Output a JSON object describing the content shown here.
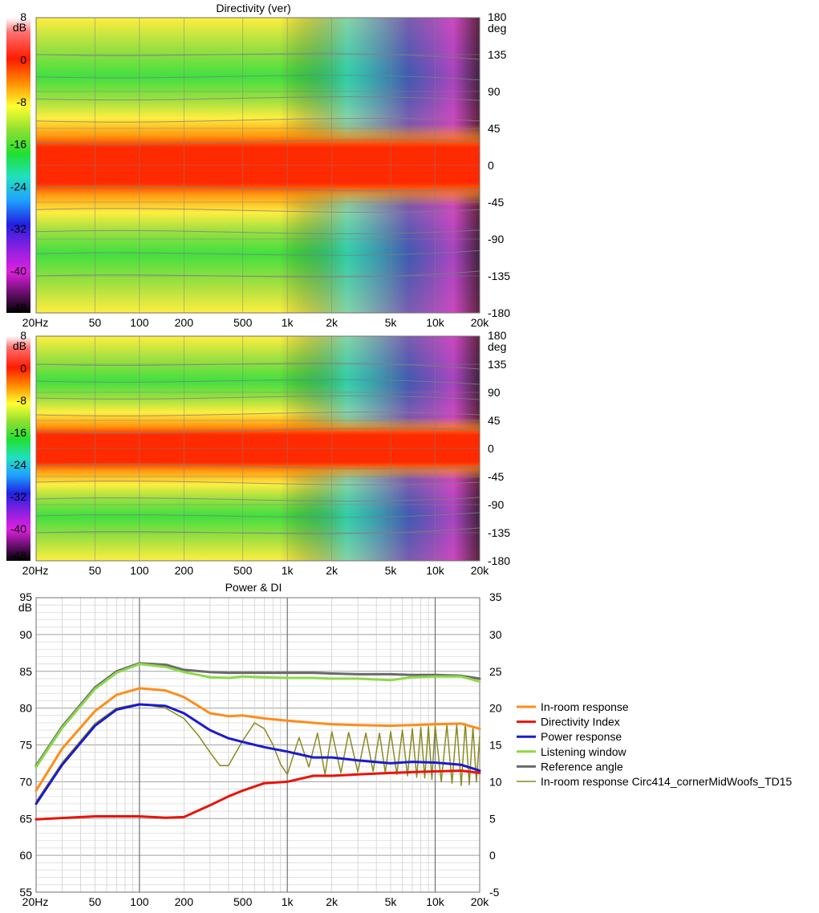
{
  "chart_data": [
    {
      "type": "heatmap",
      "title": "Directivity (ver)",
      "x_scale": "log",
      "xlim": [
        20,
        20000
      ],
      "x_ticks": [
        "20Hz",
        "50",
        "100",
        "200",
        "500",
        "1k",
        "2k",
        "5k",
        "10k",
        "20k"
      ],
      "x_tick_values": [
        20,
        50,
        100,
        200,
        500,
        1000,
        2000,
        5000,
        10000,
        20000
      ],
      "ylim": [
        -180,
        180
      ],
      "y_unit": "deg",
      "y_ticks": [
        "180",
        "135",
        "90",
        "45",
        "0",
        "-45",
        "-90",
        "-135",
        "-180"
      ],
      "y_tick_values": [
        180,
        135,
        90,
        45,
        0,
        -45,
        -90,
        -135,
        -180
      ],
      "colorbar_unit": "dB",
      "colorbar_range": [
        -48,
        8
      ],
      "colorbar_ticks": [
        "8",
        "0",
        "-8",
        "-16",
        "-24",
        "-32",
        "-40",
        "-48"
      ],
      "colorbar_tick_values": [
        8,
        0,
        -8,
        -16,
        -24,
        -32,
        -40,
        -48
      ]
    },
    {
      "type": "heatmap",
      "title": "",
      "x_scale": "log",
      "xlim": [
        20,
        20000
      ],
      "x_ticks": [
        "20Hz",
        "50",
        "100",
        "200",
        "500",
        "1k",
        "2k",
        "5k",
        "10k",
        "20k"
      ],
      "x_tick_values": [
        20,
        50,
        100,
        200,
        500,
        1000,
        2000,
        5000,
        10000,
        20000
      ],
      "ylim": [
        -180,
        180
      ],
      "y_unit": "deg",
      "y_ticks": [
        "180",
        "135",
        "90",
        "45",
        "0",
        "-45",
        "-90",
        "-135",
        "-180"
      ],
      "y_tick_values": [
        180,
        135,
        90,
        45,
        0,
        -45,
        -90,
        -135,
        -180
      ],
      "colorbar_unit": "dB",
      "colorbar_range": [
        -48,
        8
      ],
      "colorbar_ticks": [
        "8",
        "0",
        "-8",
        "-16",
        "-24",
        "-32",
        "-40",
        "-48"
      ],
      "colorbar_tick_values": [
        8,
        0,
        -8,
        -16,
        -24,
        -32,
        -40,
        -48
      ]
    },
    {
      "type": "line",
      "title": "Power & DI",
      "x_scale": "log",
      "xlim": [
        20,
        20000
      ],
      "x_ticks": [
        "20Hz",
        "50",
        "100",
        "200",
        "500",
        "1k",
        "2k",
        "5k",
        "10k",
        "20k"
      ],
      "x_tick_values": [
        20,
        50,
        100,
        200,
        500,
        1000,
        2000,
        5000,
        10000,
        20000
      ],
      "ylim": [
        55,
        95
      ],
      "y_unit": "dB",
      "y_ticks": [
        "95",
        "90",
        "85",
        "80",
        "75",
        "70",
        "65",
        "60",
        "55"
      ],
      "y_tick_values": [
        95,
        90,
        85,
        80,
        75,
        70,
        65,
        60,
        55
      ],
      "y2lim": [
        -5,
        35
      ],
      "y2_ticks": [
        "35",
        "30",
        "25",
        "20",
        "15",
        "10",
        "5",
        "0",
        "-5"
      ],
      "y2_tick_values": [
        35,
        30,
        25,
        20,
        15,
        10,
        5,
        0,
        -5
      ],
      "grid": true,
      "legend_position": "right",
      "series": [
        {
          "name": "In-room response",
          "color": "#ff8c1a",
          "axis": "left",
          "x": [
            20,
            30,
            50,
            70,
            100,
            150,
            200,
            300,
            400,
            500,
            700,
            1000,
            1500,
            2000,
            3000,
            5000,
            7000,
            10000,
            15000,
            20000
          ],
          "y": [
            68.8,
            74.5,
            79.6,
            81.8,
            82.7,
            82.4,
            81.5,
            79.3,
            78.9,
            79.0,
            78.6,
            78.3,
            78.0,
            77.8,
            77.7,
            77.6,
            77.7,
            77.8,
            77.9,
            77.2
          ]
        },
        {
          "name": "Directivity Index",
          "color": "#e8140c",
          "axis": "right",
          "x": [
            20,
            50,
            100,
            150,
            200,
            300,
            400,
            500,
            700,
            1000,
            1500,
            2000,
            3000,
            5000,
            7000,
            10000,
            15000,
            20000
          ],
          "y": [
            4.9,
            5.3,
            5.3,
            5.1,
            5.2,
            6.8,
            8.0,
            8.8,
            9.8,
            10.0,
            10.8,
            10.8,
            11.0,
            11.2,
            11.3,
            11.4,
            11.5,
            11.2
          ]
        },
        {
          "name": "Power response",
          "color": "#1a1ad0",
          "axis": "left",
          "x": [
            20,
            30,
            50,
            70,
            100,
            150,
            200,
            300,
            400,
            500,
            700,
            1000,
            1500,
            2000,
            3000,
            5000,
            7000,
            10000,
            15000,
            20000
          ],
          "y": [
            67.0,
            72.3,
            77.6,
            79.8,
            80.5,
            80.3,
            79.3,
            77.0,
            75.9,
            75.4,
            74.7,
            74.1,
            73.3,
            73.3,
            72.9,
            72.5,
            72.7,
            72.6,
            72.3,
            71.5
          ]
        },
        {
          "name": "Listening window",
          "color": "#8dd84a",
          "axis": "left",
          "x": [
            20,
            30,
            50,
            70,
            100,
            150,
            200,
            300,
            400,
            500,
            700,
            1000,
            1500,
            2000,
            3000,
            5000,
            7000,
            10000,
            15000,
            20000
          ],
          "y": [
            72.0,
            77.3,
            82.6,
            84.8,
            86.0,
            85.6,
            84.9,
            84.2,
            84.1,
            84.3,
            84.2,
            84.1,
            84.1,
            84.0,
            84.0,
            83.8,
            84.2,
            84.3,
            84.3,
            83.6
          ]
        },
        {
          "name": "Reference angle",
          "color": "#6a6a6a",
          "axis": "left",
          "x": [
            20,
            30,
            50,
            70,
            100,
            150,
            200,
            300,
            400,
            500,
            700,
            1000,
            1500,
            2000,
            3000,
            5000,
            7000,
            10000,
            15000,
            20000
          ],
          "y": [
            72.2,
            77.5,
            82.8,
            85.0,
            86.1,
            85.9,
            85.2,
            84.9,
            84.8,
            84.8,
            84.8,
            84.8,
            84.8,
            84.7,
            84.6,
            84.6,
            84.5,
            84.5,
            84.4,
            84.0
          ]
        },
        {
          "name": "In-room response Circ414_cornerMidWoofs_TD15",
          "color": "#8a8a1e",
          "axis": "left",
          "x": [
            20,
            30,
            50,
            70,
            100,
            150,
            200,
            250,
            300,
            350,
            400,
            500,
            600,
            700,
            800,
            900,
            1000,
            1200,
            1400,
            1600,
            1800,
            2000,
            2300,
            2600,
            3000,
            3400,
            3800,
            4200,
            4600,
            5000,
            5500,
            6000,
            6500,
            7000,
            7500,
            8000,
            8500,
            9000,
            9500,
            10000,
            11000,
            12000,
            13000,
            14000,
            15000,
            16000,
            17000,
            18000,
            19000,
            20000
          ],
          "y": [
            67.3,
            72.6,
            77.9,
            80.0,
            80.6,
            80.0,
            78.6,
            76.3,
            74.0,
            72.2,
            72.2,
            75.6,
            78.0,
            77.2,
            75.0,
            72.4,
            71.0,
            76.0,
            72.0,
            76.6,
            71.0,
            76.8,
            71.2,
            76.7,
            71.3,
            76.6,
            71.4,
            76.6,
            71.2,
            76.8,
            71.0,
            77.0,
            70.8,
            77.2,
            70.6,
            77.4,
            70.5,
            77.5,
            70.3,
            77.6,
            70.0,
            77.7,
            69.8,
            77.8,
            69.5,
            77.9,
            69.6,
            77.4,
            70.0,
            76.2
          ]
        }
      ]
    }
  ]
}
